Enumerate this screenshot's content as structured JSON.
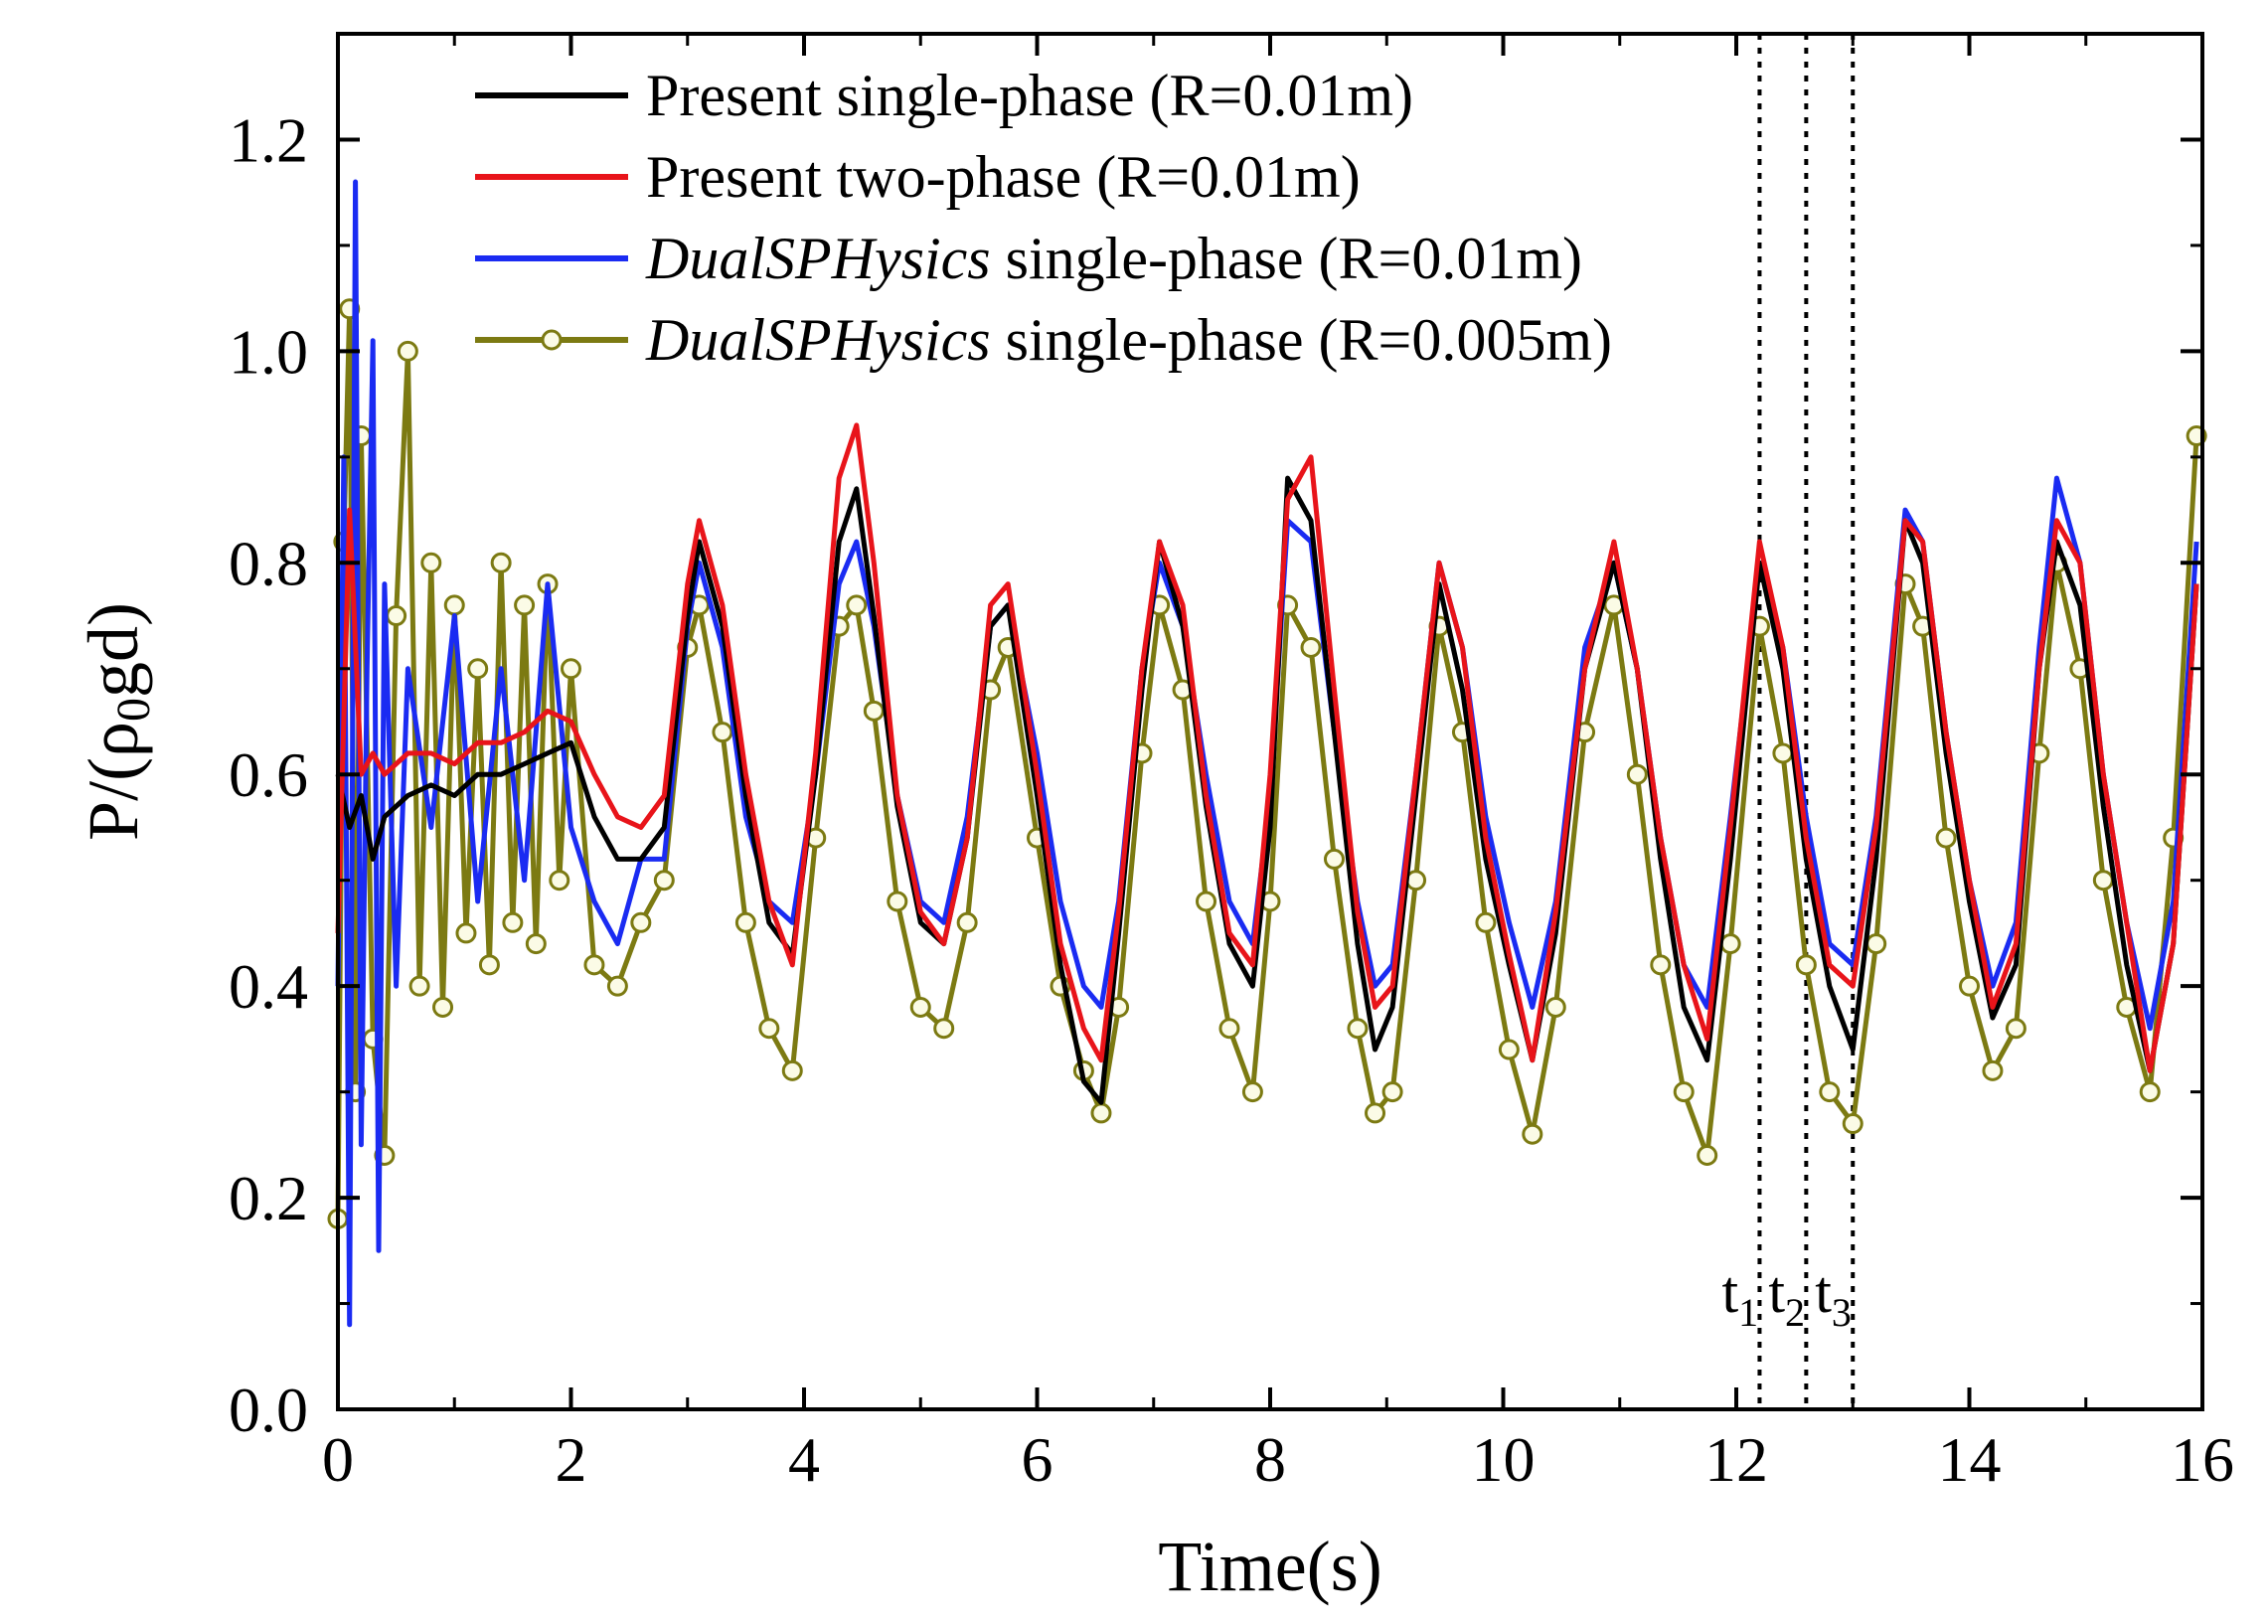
{
  "chart_data": {
    "type": "line",
    "title": "",
    "xlabel": "Time(s)",
    "ylabel_parts": {
      "main": "P/(ρ",
      "sub": "0",
      "end": "gd)"
    },
    "xlim": [
      0,
      16
    ],
    "ylim": [
      0.0,
      1.3
    ],
    "xticks": [
      0,
      2,
      4,
      6,
      8,
      10,
      12,
      14,
      16
    ],
    "xtick_labels": [
      "0",
      "2",
      "4",
      "6",
      "8",
      "10",
      "12",
      "14",
      "16"
    ],
    "yticks": [
      0.0,
      0.2,
      0.4,
      0.6,
      0.8,
      1.0,
      1.2
    ],
    "ytick_labels": [
      "0.0",
      "0.2",
      "0.4",
      "0.6",
      "0.8",
      "1.0",
      "1.2"
    ],
    "grid": false,
    "legend_position": "top-left",
    "time_markers": [
      {
        "name": "t1",
        "base": "t",
        "sub": "1",
        "x": 12.2
      },
      {
        "name": "t2",
        "base": "t",
        "sub": "2",
        "x": 12.6
      },
      {
        "name": "t3",
        "base": "t",
        "sub": "3",
        "x": 13.0
      }
    ],
    "series": [
      {
        "name": "Present single-phase (R=0.01m)",
        "legend": {
          "italic": "",
          "text": "Present single-phase (R=0.01m)"
        },
        "color": "#000000",
        "marker": "none",
        "x": [
          0,
          0.1,
          0.2,
          0.3,
          0.4,
          0.6,
          0.8,
          1.0,
          1.2,
          1.4,
          1.6,
          1.8,
          2.0,
          2.2,
          2.4,
          2.6,
          2.8,
          3.0,
          3.1,
          3.3,
          3.5,
          3.7,
          3.9,
          4.1,
          4.3,
          4.45,
          4.6,
          4.8,
          5.0,
          5.2,
          5.4,
          5.6,
          5.75,
          6.0,
          6.2,
          6.4,
          6.55,
          6.7,
          6.9,
          7.05,
          7.25,
          7.45,
          7.65,
          7.85,
          8.0,
          8.15,
          8.35,
          8.55,
          8.75,
          8.9,
          9.05,
          9.25,
          9.45,
          9.65,
          9.85,
          10.05,
          10.25,
          10.45,
          10.7,
          10.95,
          11.15,
          11.35,
          11.55,
          11.75,
          11.95,
          12.2,
          12.4,
          12.6,
          12.8,
          13.0,
          13.2,
          13.45,
          13.6,
          13.8,
          14.0,
          14.2,
          14.4,
          14.6,
          14.75,
          14.95,
          15.15,
          15.35,
          15.55,
          15.75,
          15.95
        ],
        "y": [
          0.6,
          0.55,
          0.58,
          0.52,
          0.56,
          0.58,
          0.59,
          0.58,
          0.6,
          0.6,
          0.61,
          0.62,
          0.63,
          0.56,
          0.52,
          0.52,
          0.55,
          0.75,
          0.82,
          0.74,
          0.58,
          0.46,
          0.43,
          0.6,
          0.82,
          0.87,
          0.75,
          0.57,
          0.46,
          0.44,
          0.54,
          0.74,
          0.76,
          0.58,
          0.42,
          0.31,
          0.29,
          0.45,
          0.68,
          0.82,
          0.74,
          0.57,
          0.44,
          0.4,
          0.55,
          0.88,
          0.84,
          0.64,
          0.44,
          0.34,
          0.38,
          0.58,
          0.78,
          0.68,
          0.52,
          0.42,
          0.33,
          0.45,
          0.7,
          0.8,
          0.7,
          0.52,
          0.38,
          0.33,
          0.52,
          0.8,
          0.7,
          0.52,
          0.4,
          0.34,
          0.52,
          0.84,
          0.8,
          0.62,
          0.48,
          0.37,
          0.42,
          0.7,
          0.82,
          0.76,
          0.57,
          0.42,
          0.32,
          0.44,
          0.78
        ]
      },
      {
        "name": "Present two-phase (R=0.01m)",
        "legend": {
          "italic": "",
          "text": "Present two-phase (R=0.01m)"
        },
        "color": "#e8141a",
        "marker": "none",
        "x": [
          0,
          0.1,
          0.2,
          0.3,
          0.4,
          0.6,
          0.8,
          1.0,
          1.2,
          1.4,
          1.6,
          1.8,
          2.0,
          2.2,
          2.4,
          2.6,
          2.8,
          3.0,
          3.1,
          3.3,
          3.5,
          3.7,
          3.9,
          4.1,
          4.3,
          4.45,
          4.6,
          4.8,
          5.0,
          5.2,
          5.4,
          5.6,
          5.75,
          6.0,
          6.2,
          6.4,
          6.55,
          6.7,
          6.9,
          7.05,
          7.25,
          7.45,
          7.65,
          7.85,
          8.0,
          8.15,
          8.35,
          8.55,
          8.75,
          8.9,
          9.05,
          9.25,
          9.45,
          9.65,
          9.85,
          10.05,
          10.25,
          10.45,
          10.7,
          10.95,
          11.15,
          11.35,
          11.55,
          11.75,
          11.95,
          12.2,
          12.4,
          12.6,
          12.8,
          13.0,
          13.2,
          13.45,
          13.6,
          13.8,
          14.0,
          14.2,
          14.4,
          14.6,
          14.75,
          14.95,
          15.15,
          15.35,
          15.55,
          15.75,
          15.95
        ],
        "y": [
          0.45,
          0.85,
          0.6,
          0.62,
          0.6,
          0.62,
          0.62,
          0.61,
          0.63,
          0.63,
          0.64,
          0.66,
          0.65,
          0.6,
          0.56,
          0.55,
          0.58,
          0.78,
          0.84,
          0.76,
          0.6,
          0.48,
          0.42,
          0.62,
          0.88,
          0.93,
          0.8,
          0.58,
          0.47,
          0.44,
          0.54,
          0.76,
          0.78,
          0.6,
          0.44,
          0.36,
          0.33,
          0.47,
          0.7,
          0.82,
          0.76,
          0.58,
          0.45,
          0.42,
          0.6,
          0.86,
          0.9,
          0.68,
          0.47,
          0.38,
          0.4,
          0.6,
          0.8,
          0.72,
          0.54,
          0.43,
          0.33,
          0.47,
          0.7,
          0.82,
          0.7,
          0.54,
          0.42,
          0.35,
          0.55,
          0.82,
          0.72,
          0.54,
          0.42,
          0.4,
          0.55,
          0.84,
          0.82,
          0.64,
          0.5,
          0.38,
          0.44,
          0.7,
          0.84,
          0.8,
          0.6,
          0.46,
          0.32,
          0.44,
          0.78
        ]
      },
      {
        "name": "DualSPHysics single-phase (R=0.01m)",
        "legend": {
          "italic": "DualSPHysics",
          "text": " single-phase (R=0.01m)"
        },
        "color": "#1a2bf2",
        "marker": "none",
        "x": [
          0,
          0.05,
          0.1,
          0.15,
          0.2,
          0.25,
          0.3,
          0.35,
          0.4,
          0.5,
          0.6,
          0.8,
          1.0,
          1.2,
          1.4,
          1.6,
          1.8,
          2.0,
          2.2,
          2.4,
          2.6,
          2.8,
          3.0,
          3.1,
          3.3,
          3.5,
          3.7,
          3.9,
          4.1,
          4.3,
          4.45,
          4.6,
          4.8,
          5.0,
          5.2,
          5.4,
          5.6,
          5.75,
          6.0,
          6.2,
          6.4,
          6.55,
          6.7,
          6.9,
          7.05,
          7.25,
          7.45,
          7.65,
          7.85,
          8.0,
          8.15,
          8.35,
          8.55,
          8.75,
          8.9,
          9.05,
          9.25,
          9.45,
          9.65,
          9.85,
          10.05,
          10.25,
          10.45,
          10.7,
          10.95,
          11.15,
          11.35,
          11.55,
          11.75,
          11.95,
          12.2,
          12.4,
          12.6,
          12.8,
          13.0,
          13.2,
          13.45,
          13.6,
          13.8,
          14.0,
          14.2,
          14.4,
          14.6,
          14.75,
          14.95,
          15.15,
          15.35,
          15.55,
          15.75,
          15.95
        ],
        "y": [
          0.4,
          0.9,
          0.08,
          1.16,
          0.25,
          0.7,
          1.01,
          0.15,
          0.78,
          0.4,
          0.7,
          0.55,
          0.75,
          0.48,
          0.7,
          0.5,
          0.78,
          0.55,
          0.48,
          0.44,
          0.52,
          0.52,
          0.74,
          0.8,
          0.72,
          0.56,
          0.48,
          0.46,
          0.6,
          0.78,
          0.82,
          0.74,
          0.58,
          0.48,
          0.46,
          0.56,
          0.74,
          0.76,
          0.62,
          0.48,
          0.4,
          0.38,
          0.48,
          0.7,
          0.8,
          0.74,
          0.6,
          0.48,
          0.44,
          0.58,
          0.84,
          0.82,
          0.64,
          0.48,
          0.4,
          0.42,
          0.6,
          0.8,
          0.72,
          0.56,
          0.46,
          0.38,
          0.48,
          0.72,
          0.8,
          0.7,
          0.54,
          0.42,
          0.38,
          0.56,
          0.8,
          0.72,
          0.56,
          0.44,
          0.42,
          0.56,
          0.85,
          0.82,
          0.64,
          0.5,
          0.4,
          0.46,
          0.72,
          0.88,
          0.8,
          0.6,
          0.46,
          0.36,
          0.48,
          0.82
        ]
      },
      {
        "name": "DualSPHysics single-phase (R=0.005m)",
        "legend": {
          "italic": "DualSPHysics",
          "text": " single-phase (R=0.005m)"
        },
        "color": "#7c7a12",
        "marker": "circle",
        "marker_face": "#fbfbe6",
        "x": [
          0,
          0.05,
          0.1,
          0.15,
          0.2,
          0.3,
          0.4,
          0.5,
          0.6,
          0.7,
          0.8,
          0.9,
          1.0,
          1.1,
          1.2,
          1.3,
          1.4,
          1.5,
          1.6,
          1.7,
          1.8,
          1.9,
          2.0,
          2.2,
          2.4,
          2.6,
          2.8,
          3.0,
          3.1,
          3.3,
          3.5,
          3.7,
          3.9,
          4.1,
          4.3,
          4.45,
          4.6,
          4.8,
          5.0,
          5.2,
          5.4,
          5.6,
          5.75,
          6.0,
          6.2,
          6.4,
          6.55,
          6.7,
          6.9,
          7.05,
          7.25,
          7.45,
          7.65,
          7.85,
          8.0,
          8.15,
          8.35,
          8.55,
          8.75,
          8.9,
          9.05,
          9.25,
          9.45,
          9.65,
          9.85,
          10.05,
          10.25,
          10.45,
          10.7,
          10.95,
          11.15,
          11.35,
          11.55,
          11.75,
          11.95,
          12.2,
          12.4,
          12.6,
          12.8,
          13.0,
          13.2,
          13.45,
          13.6,
          13.8,
          14.0,
          14.2,
          14.4,
          14.6,
          14.75,
          14.95,
          15.15,
          15.35,
          15.55,
          15.75,
          15.95
        ],
        "y": [
          0.18,
          0.82,
          1.04,
          0.3,
          0.92,
          0.35,
          0.24,
          0.75,
          1.0,
          0.4,
          0.8,
          0.38,
          0.76,
          0.45,
          0.7,
          0.42,
          0.8,
          0.46,
          0.76,
          0.44,
          0.78,
          0.5,
          0.7,
          0.42,
          0.4,
          0.46,
          0.5,
          0.72,
          0.76,
          0.64,
          0.46,
          0.36,
          0.32,
          0.54,
          0.74,
          0.76,
          0.66,
          0.48,
          0.38,
          0.36,
          0.46,
          0.68,
          0.72,
          0.54,
          0.4,
          0.32,
          0.28,
          0.38,
          0.62,
          0.76,
          0.68,
          0.48,
          0.36,
          0.3,
          0.48,
          0.76,
          0.72,
          0.52,
          0.36,
          0.28,
          0.3,
          0.5,
          0.74,
          0.64,
          0.46,
          0.34,
          0.26,
          0.38,
          0.64,
          0.76,
          0.6,
          0.42,
          0.3,
          0.24,
          0.44,
          0.74,
          0.62,
          0.42,
          0.3,
          0.27,
          0.44,
          0.78,
          0.74,
          0.54,
          0.4,
          0.32,
          0.36,
          0.62,
          0.8,
          0.7,
          0.5,
          0.38,
          0.3,
          0.54,
          0.92
        ]
      }
    ]
  }
}
